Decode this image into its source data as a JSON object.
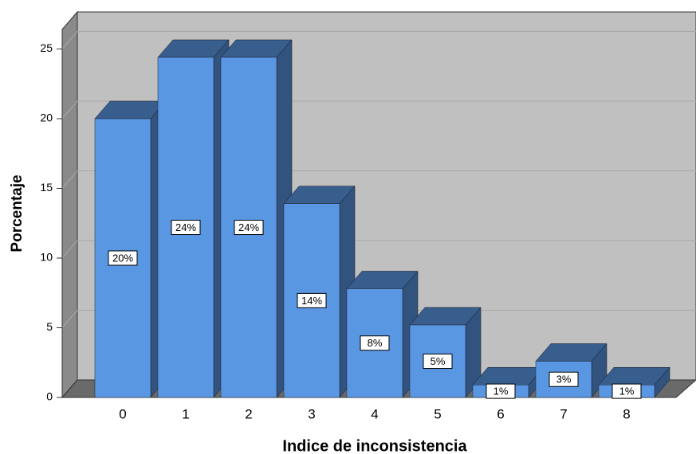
{
  "chart_data": {
    "type": "bar3d",
    "x_label": "Indice de inconsistencia",
    "y_label": "Porcentaje",
    "categories": [
      "0",
      "1",
      "2",
      "3",
      "4",
      "5",
      "6",
      "7",
      "8"
    ],
    "values": [
      20,
      24.4,
      24.4,
      13.9,
      7.8,
      5.2,
      0.9,
      2.6,
      0.9
    ],
    "value_labels": [
      "20%",
      "24%",
      "24%",
      "14%",
      "8%",
      "5%",
      "1%",
      "3%",
      "1%"
    ],
    "color": "#5a97e3",
    "ylim": [
      0,
      26.4
    ],
    "yticks": [
      0,
      5,
      10,
      15,
      20,
      25
    ],
    "grid": true
  }
}
